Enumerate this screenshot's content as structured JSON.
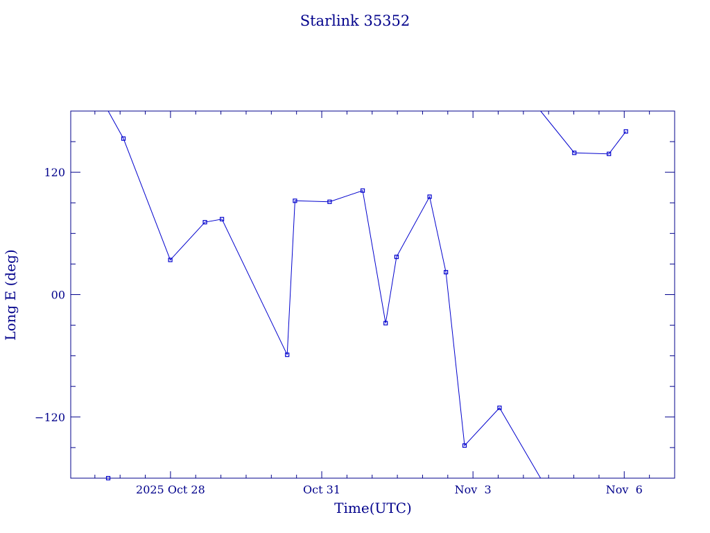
{
  "chart_data": {
    "type": "line",
    "title": "Starlink 35352",
    "xlabel": "Time(UTC)",
    "ylabel": "Long E (deg)",
    "x_unit": "days",
    "x_ticks": [
      {
        "label": "2025 Oct 28",
        "x": "2025-10-28"
      },
      {
        "label": "Oct 31",
        "x": "2025-10-31"
      },
      {
        "label": "Nov  3",
        "x": "2025-11-03"
      },
      {
        "label": "Nov  6",
        "x": "2025-11-06"
      }
    ],
    "y_ticks": [
      {
        "label": "120",
        "y": 120
      },
      {
        "label": "00",
        "y": 0
      },
      {
        "label": "−120",
        "y": -120
      }
    ],
    "xlim": [
      "2025-10-26T00:30",
      "2025-11-07T00:00"
    ],
    "ylim": [
      -180,
      180
    ],
    "grid": false,
    "color": "#0000cd",
    "series": [
      {
        "points": [
          {
            "x": "2025-10-27T01:36",
            "y": 153
          },
          {
            "x": "2025-10-27T23:54",
            "y": 34
          },
          {
            "x": "2025-10-28T16:23",
            "y": 71
          },
          {
            "x": "2025-10-29T00:29",
            "y": 74
          },
          {
            "x": "2025-10-30T07:33",
            "y": -59
          },
          {
            "x": "2025-10-30T11:15",
            "y": 92
          },
          {
            "x": "2025-10-31T03:44",
            "y": 91
          },
          {
            "x": "2025-10-31T19:29",
            "y": 102
          },
          {
            "x": "2025-11-01T06:25",
            "y": -28
          },
          {
            "x": "2025-11-01T11:36",
            "y": 37
          },
          {
            "x": "2025-11-02T03:21",
            "y": 96
          },
          {
            "x": "2025-11-02T11:07",
            "y": 22
          },
          {
            "x": "2025-11-02T20:00",
            "y": -148
          },
          {
            "x": "2025-11-03T12:38",
            "y": -111
          },
          {
            "x": "2025-11-04T08:11",
            "y": -180
          },
          {
            "x": "2025-11-05T00:14",
            "y": 139
          },
          {
            "x": "2025-11-05T16:43",
            "y": 138
          },
          {
            "x": "2025-11-06T00:48",
            "y": 160
          }
        ],
        "wrap_segments": [
          {
            "from": {
              "x": "2025-10-27T01:36",
              "y": 153
            },
            "edge_x": "2025-10-26T18:20",
            "edge_y": 180
          },
          {
            "from": {
              "x": "2025-11-04T08:11",
              "y": -180
            },
            "to_top_x": "2025-11-04T08:11",
            "to_top_y": 180
          }
        ],
        "extra_marker": {
          "x": "2025-10-26T18:20",
          "y": -180
        }
      }
    ]
  }
}
